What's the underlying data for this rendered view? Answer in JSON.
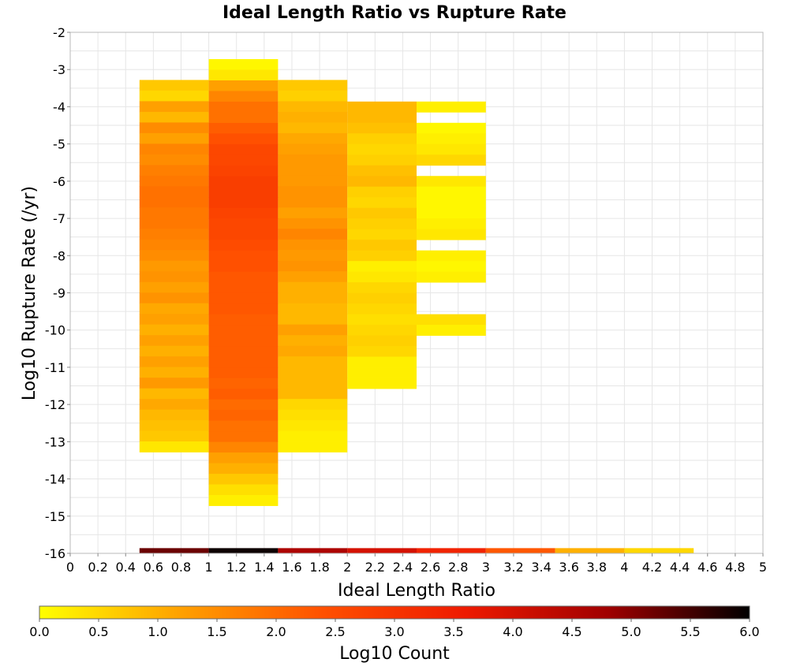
{
  "chart_data": {
    "type": "heatmap",
    "title": "Ideal Length Ratio vs Rupture Rate",
    "xlabel": "Ideal Length Ratio",
    "ylabel": "Log10 Rupture Rate (/yr)",
    "xlim": [
      0,
      5
    ],
    "ylim": [
      -16,
      -2
    ],
    "x_ticks": [
      "0",
      "0.2",
      "0.4",
      "0.6",
      "0.8",
      "1",
      "1.2",
      "1.4",
      "1.6",
      "1.8",
      "2",
      "2.2",
      "2.4",
      "2.6",
      "2.8",
      "3",
      "3.2",
      "3.4",
      "3.6",
      "3.8",
      "4",
      "4.2",
      "4.4",
      "4.6",
      "4.8",
      "5"
    ],
    "y_ticks": [
      "-2",
      "-3",
      "-4",
      "-5",
      "-6",
      "-7",
      "-8",
      "-9",
      "-10",
      "-11",
      "-12",
      "-13",
      "-14",
      "-15",
      "-16"
    ],
    "grid": true,
    "x_bin_width": 0.5,
    "y_bin_height": 0.2857,
    "colorbar": {
      "label": "Log10 Count",
      "min": 0.0,
      "max": 6.0,
      "ticks": [
        "0.0",
        "0.5",
        "1.0",
        "1.5",
        "2.0",
        "2.5",
        "3.0",
        "3.5",
        "4.0",
        "4.5",
        "5.0",
        "5.5",
        "6.0"
      ],
      "colors": [
        "#ffff00",
        "#ffa000",
        "#ff5000",
        "#ee1a00",
        "#a00000",
        "#000000"
      ]
    },
    "columns": [
      {
        "x": 0.75,
        "y_top": -3.28,
        "values": [
          0.7,
          0.5,
          1.2,
          0.9,
          1.5,
          1.2,
          1.6,
          1.5,
          1.7,
          1.8,
          1.9,
          1.9,
          1.8,
          1.8,
          1.7,
          1.6,
          1.5,
          1.3,
          1.4,
          1.2,
          1.4,
          1.1,
          1.2,
          1.0,
          1.2,
          1.0,
          1.2,
          1.0,
          1.3,
          0.9,
          1.1,
          0.9,
          0.8,
          0.7,
          0.3
        ]
      },
      {
        "x": 1.25,
        "y_top": -2.72,
        "values": [
          0.1,
          0.3,
          1.2,
          1.6,
          1.9,
          1.9,
          2.2,
          2.4,
          2.6,
          2.6,
          2.7,
          2.8,
          2.8,
          2.8,
          2.7,
          2.6,
          2.6,
          2.5,
          2.4,
          2.4,
          2.3,
          2.3,
          2.3,
          2.3,
          2.2,
          2.2,
          2.2,
          2.2,
          2.2,
          2.2,
          2.1,
          2.2,
          2.0,
          2.1,
          1.9,
          1.9,
          1.6,
          1.2,
          1.0,
          0.7,
          0.4,
          0.2
        ]
      },
      {
        "x": 1.75,
        "y_top": -3.28,
        "values": [
          0.7,
          0.6,
          0.9,
          1.0,
          0.9,
          1.1,
          1.2,
          1.3,
          1.3,
          1.3,
          1.4,
          1.4,
          1.2,
          1.4,
          1.6,
          1.4,
          1.3,
          1.4,
          1.2,
          1.0,
          1.0,
          0.9,
          0.9,
          1.2,
          1.0,
          1.1,
          0.9,
          0.9,
          0.9,
          0.9,
          0.5,
          0.4,
          0.3,
          0.2,
          0.2
        ]
      },
      {
        "x": 2.25,
        "y_top": -3.86,
        "values": [
          0.9,
          0.9,
          0.8,
          0.6,
          0.5,
          0.6,
          0.8,
          0.9,
          0.6,
          0.5,
          0.7,
          0.6,
          0.5,
          0.7,
          0.6,
          0.2,
          0.3,
          0.5,
          0.6,
          0.5,
          0.4,
          0.5,
          0.6,
          0.5,
          0.2,
          0.2,
          0.2
        ]
      },
      {
        "x": 2.75,
        "y_top": -3.86,
        "values": [
          0.2,
          null,
          0.1,
          0.2,
          0.3,
          0.5,
          null,
          0.3,
          0.1,
          0.1,
          0.1,
          0.2,
          0.3,
          null,
          0.2,
          0.1,
          0.2,
          null,
          null,
          null,
          0.4,
          0.2
        ]
      }
    ],
    "bottom_strip": {
      "y_top": -15.86,
      "y_bottom": -16.0,
      "cells": [
        {
          "x0": 0.5,
          "x1": 1.0,
          "value": 5.2
        },
        {
          "x0": 1.0,
          "x1": 1.5,
          "value": 5.9
        },
        {
          "x0": 1.5,
          "x1": 2.0,
          "value": 4.6
        },
        {
          "x0": 2.0,
          "x1": 2.5,
          "value": 4.0
        },
        {
          "x0": 2.5,
          "x1": 3.0,
          "value": 3.4
        },
        {
          "x0": 3.0,
          "x1": 3.5,
          "value": 2.3
        },
        {
          "x0": 3.5,
          "x1": 4.0,
          "value": 1.0
        },
        {
          "x0": 4.0,
          "x1": 4.5,
          "value": 0.5
        }
      ]
    }
  }
}
